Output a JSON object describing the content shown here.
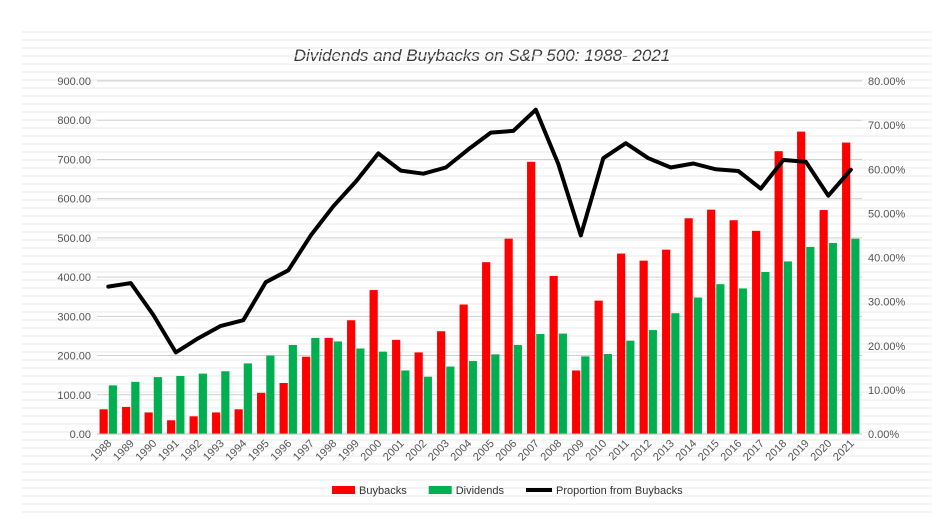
{
  "chart_data": {
    "type": "bar",
    "title": "Dividends and Buybacks on S&P 500: 1988- 2021",
    "categories": [
      "1988",
      "1989",
      "1990",
      "1991",
      "1992",
      "1993",
      "1994",
      "1995",
      "1996",
      "1997",
      "1998",
      "1999",
      "2000",
      "2001",
      "2002",
      "2003",
      "2004",
      "2005",
      "2006",
      "2007",
      "2008",
      "2009",
      "2010",
      "2011",
      "2012",
      "2013",
      "2014",
      "2015",
      "2016",
      "2017",
      "2018",
      "2019",
      "2020",
      "2021"
    ],
    "series": [
      {
        "name": "Buybacks",
        "type": "bar",
        "axis": "left",
        "color": "#ff0000",
        "values": [
          63,
          69,
          55,
          35,
          45,
          55,
          63,
          105,
          130,
          197,
          245,
          290,
          367,
          240,
          208,
          262,
          330,
          438,
          498,
          694,
          403,
          162,
          340,
          460,
          442,
          470,
          550,
          572,
          545,
          518,
          721,
          771,
          571,
          743
        ]
      },
      {
        "name": "Dividends",
        "type": "bar",
        "axis": "left",
        "color": "#00b050",
        "values": [
          124,
          133,
          145,
          148,
          154,
          160,
          180,
          200,
          227,
          245,
          236,
          218,
          210,
          162,
          146,
          172,
          186,
          203,
          227,
          255,
          256,
          198,
          204,
          238,
          265,
          308,
          348,
          382,
          371,
          413,
          440,
          477,
          487,
          498
        ]
      },
      {
        "name": "Proportion from Buybacks",
        "type": "line",
        "axis": "right",
        "color": "#000000",
        "values": [
          33.4,
          34.2,
          27.0,
          18.5,
          21.7,
          24.5,
          25.8,
          34.4,
          37.1,
          45.0,
          51.6,
          57.2,
          63.6,
          59.7,
          59.0,
          60.4,
          64.5,
          68.3,
          68.7,
          73.5,
          61.2,
          45.0,
          62.5,
          65.9,
          62.5,
          60.4,
          61.3,
          60.0,
          59.6,
          55.6,
          62.1,
          61.7,
          54.0,
          59.9
        ]
      }
    ],
    "ylim": [
      0,
      900
    ],
    "yticks": [
      "0.00",
      "100.00",
      "200.00",
      "300.00",
      "400.00",
      "500.00",
      "600.00",
      "700.00",
      "800.00",
      "900.00"
    ],
    "y2lim": [
      0,
      80
    ],
    "y2ticks": [
      "0.00%",
      "10.00%",
      "20.00%",
      "30.00%",
      "40.00%",
      "50.00%",
      "60.00%",
      "70.00%",
      "80.00%"
    ],
    "grid": true,
    "legend": "bottom"
  }
}
